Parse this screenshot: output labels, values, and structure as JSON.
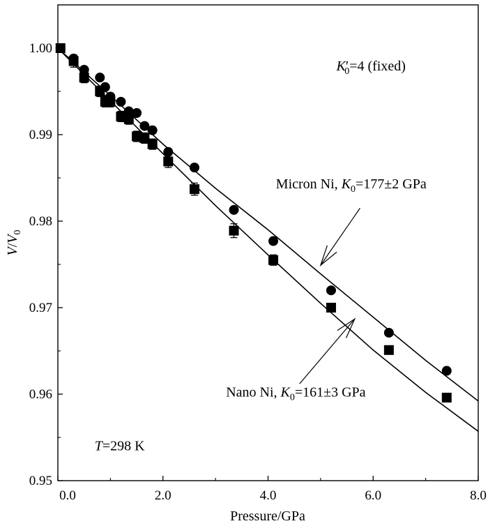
{
  "chart_data": {
    "type": "scatter",
    "xlabel": "Pressure/GPa",
    "ylabel": {
      "v": "V",
      "slash": "/",
      "v0": "V",
      "sub": "0"
    },
    "xlim": [
      0,
      8
    ],
    "ylim": [
      0.95,
      1.005
    ],
    "x_ticks": [
      {
        "value": 0,
        "label": "0.0"
      },
      {
        "value": 2,
        "label": "2.0"
      },
      {
        "value": 4,
        "label": "4.0"
      },
      {
        "value": 6,
        "label": "6.0"
      },
      {
        "value": 8,
        "label": "8.0"
      }
    ],
    "y_ticks": [
      {
        "value": 0.95,
        "label": "0.95"
      },
      {
        "value": 0.96,
        "label": "0.96"
      },
      {
        "value": 0.97,
        "label": "0.97"
      },
      {
        "value": 0.98,
        "label": "0.98"
      },
      {
        "value": 0.99,
        "label": "0.99"
      },
      {
        "value": 1.0,
        "label": "1.00"
      }
    ],
    "grid": false,
    "series": [
      {
        "name": "Micron Ni",
        "marker": "circle",
        "points": [
          [
            0.05,
            1.0
          ],
          [
            0.3,
            0.9988
          ],
          [
            0.5,
            0.9975
          ],
          [
            0.8,
            0.9966
          ],
          [
            0.9,
            0.9955
          ],
          [
            1.0,
            0.9944
          ],
          [
            1.2,
            0.9938
          ],
          [
            1.35,
            0.9927
          ],
          [
            1.5,
            0.9925
          ],
          [
            1.65,
            0.991
          ],
          [
            1.8,
            0.9905
          ],
          [
            2.1,
            0.988
          ],
          [
            2.6,
            0.9862
          ],
          [
            3.35,
            0.9813
          ],
          [
            4.1,
            0.9777
          ],
          [
            5.2,
            0.972
          ],
          [
            6.3,
            0.9671
          ],
          [
            7.4,
            0.9627
          ]
        ],
        "fit": [
          [
            0,
            1.0
          ],
          [
            1,
            0.9945
          ],
          [
            2,
            0.9889
          ],
          [
            3,
            0.9838
          ],
          [
            4,
            0.979
          ],
          [
            5,
            0.9739
          ],
          [
            6,
            0.9689
          ],
          [
            7,
            0.9639
          ],
          [
            8,
            0.9592
          ]
        ]
      },
      {
        "name": "Nano Ni",
        "marker": "square",
        "points": [
          [
            0.05,
            1.0
          ],
          [
            0.3,
            0.9985
          ],
          [
            0.5,
            0.9966
          ],
          [
            0.8,
            0.995
          ],
          [
            0.9,
            0.9938
          ],
          [
            1.0,
            0.9938
          ],
          [
            1.2,
            0.9921
          ],
          [
            1.35,
            0.9918
          ],
          [
            1.5,
            0.9898
          ],
          [
            1.65,
            0.9896
          ],
          [
            1.8,
            0.9889
          ],
          [
            2.1,
            0.9869
          ],
          [
            2.6,
            0.9837
          ],
          [
            3.35,
            0.9789
          ],
          [
            4.1,
            0.9755
          ],
          [
            5.2,
            0.97
          ],
          [
            6.3,
            0.9651
          ],
          [
            7.4,
            0.9596
          ]
        ],
        "errors": [
          0.0005,
          0.0007,
          0.0006,
          0.0006,
          0.0006,
          0.0006,
          0.0006,
          0.0006,
          0.0006,
          0.0006,
          0.0006,
          0.0007,
          0.0007,
          0.0008,
          0.0006,
          0.0003,
          0.0003,
          0.0005
        ],
        "fit": [
          [
            0,
            1.0
          ],
          [
            1,
            0.9939
          ],
          [
            2,
            0.9878
          ],
          [
            3,
            0.9818
          ],
          [
            4,
            0.9761
          ],
          [
            5,
            0.9705
          ],
          [
            6,
            0.9651
          ],
          [
            7,
            0.9602
          ],
          [
            8,
            0.9557
          ]
        ]
      }
    ],
    "annotations": {
      "kprime": {
        "k": "K",
        "sub": "0",
        "prime": "′",
        "rest": "=4 (fixed)",
        "at": [
          5.3,
          0.9974
        ]
      },
      "micron": {
        "prefix": "Micron Ni, ",
        "k": "K",
        "sub": "0",
        "rest": "=177±2 GPa",
        "at": [
          4.15,
          0.9838
        ],
        "arrow_from": [
          5.75,
          0.9815
        ],
        "arrow_to": [
          5.0,
          0.9749
        ]
      },
      "nano": {
        "prefix": "Nano Ni, ",
        "k": "K",
        "sub": "0",
        "rest": "=161±3 GPa",
        "at": [
          3.2,
          0.9597
        ],
        "arrow_from": [
          4.6,
          0.9612
        ],
        "arrow_to": [
          5.65,
          0.9687
        ]
      },
      "temp": {
        "t": "T",
        "rest": "=298 K",
        "at": [
          0.7,
          0.9535
        ]
      }
    }
  }
}
